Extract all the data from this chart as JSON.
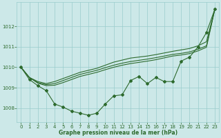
{
  "hours": [
    0,
    1,
    2,
    3,
    4,
    5,
    6,
    7,
    8,
    9,
    10,
    11,
    12,
    13,
    14,
    15,
    16,
    17,
    18,
    19,
    20,
    21,
    22,
    23
  ],
  "line_jagged": [
    1010.0,
    1009.4,
    1009.1,
    1008.85,
    1008.2,
    1008.05,
    1007.85,
    1007.75,
    1007.65,
    1007.75,
    1008.2,
    1008.6,
    1008.65,
    1009.35,
    1009.55,
    1009.2,
    1009.5,
    1009.3,
    1009.3,
    1010.3,
    1010.5,
    1011.0,
    1011.7,
    1012.85
  ],
  "line_high": [
    1010.0,
    1009.5,
    1009.3,
    1009.2,
    1009.3,
    1009.45,
    1009.6,
    1009.75,
    1009.85,
    1009.95,
    1010.1,
    1010.25,
    1010.35,
    1010.45,
    1010.5,
    1010.55,
    1010.62,
    1010.7,
    1010.78,
    1010.85,
    1010.92,
    1011.05,
    1011.25,
    1012.85
  ],
  "line_mid1": [
    1010.0,
    1009.5,
    1009.25,
    1009.15,
    1009.2,
    1009.35,
    1009.5,
    1009.65,
    1009.75,
    1009.85,
    1009.98,
    1010.1,
    1010.2,
    1010.28,
    1010.34,
    1010.4,
    1010.47,
    1010.55,
    1010.63,
    1010.68,
    1010.75,
    1010.88,
    1011.05,
    1012.85
  ],
  "line_mid2": [
    1010.0,
    1009.5,
    1009.22,
    1009.1,
    1009.12,
    1009.25,
    1009.4,
    1009.55,
    1009.65,
    1009.75,
    1009.88,
    1010.0,
    1010.1,
    1010.18,
    1010.24,
    1010.3,
    1010.37,
    1010.46,
    1010.55,
    1010.6,
    1010.67,
    1010.8,
    1010.98,
    1012.85
  ],
  "line_color": "#2d6a2d",
  "bg_color": "#cce8e8",
  "grid_color": "#99cccc",
  "xlabel": "Graphe pression niveau de la mer (hPa)",
  "ylim_min": 1007.3,
  "ylim_max": 1013.2,
  "yticks": [
    1008,
    1009,
    1010,
    1011,
    1012
  ],
  "xticks": [
    0,
    1,
    2,
    3,
    4,
    5,
    6,
    7,
    8,
    9,
    10,
    11,
    12,
    13,
    14,
    15,
    16,
    17,
    18,
    19,
    20,
    21,
    22,
    23
  ]
}
